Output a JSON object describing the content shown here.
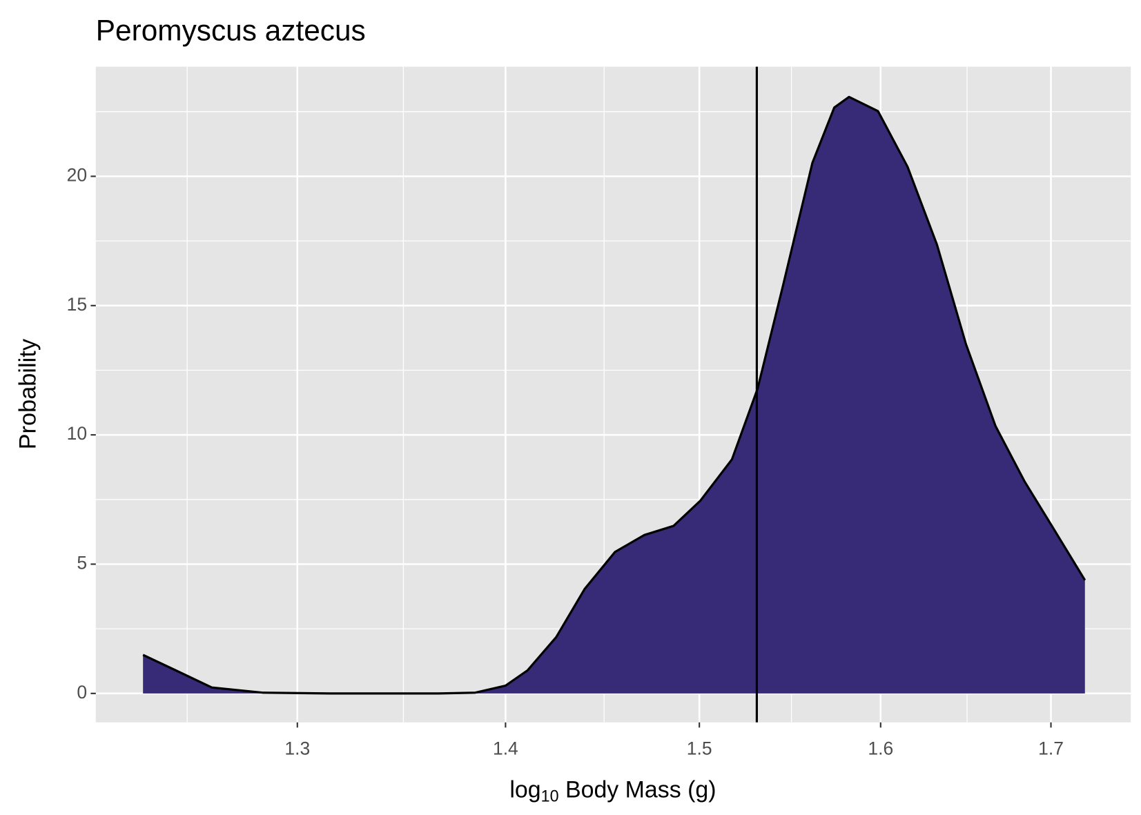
{
  "chart_data": {
    "type": "density",
    "title": "Peromyscus aztecus",
    "xlabel": [
      "log",
      "10",
      " Body Mass (g)"
    ],
    "ylabel": "Probability",
    "x": [
      1.2305,
      1.245,
      1.261,
      1.284,
      1.315,
      1.367,
      1.385,
      1.4,
      1.411,
      1.4255,
      1.44,
      1.4556,
      1.471,
      1.4863,
      1.5005,
      1.5175,
      1.5314,
      1.5454,
      1.5616,
      1.5738,
      1.5821,
      1.5985,
      1.6154,
      1.6324,
      1.6494,
      1.6668,
      1.6842,
      1.702,
      1.7207
    ],
    "values": [
      1.49,
      0.89,
      0.23,
      0.03,
      0,
      0,
      0.03,
      0.3,
      0.89,
      2.18,
      4.04,
      5.47,
      6.13,
      6.48,
      7.45,
      9.05,
      11.78,
      15.79,
      20.52,
      22.66,
      23.07,
      22.52,
      20.37,
      17.36,
      13.5,
      10.34,
      8.19,
      6.33,
      4.38
    ],
    "color": "#372a77",
    "vline": 1.531,
    "xlog": true,
    "xlim": [
      1.21,
      1.749
    ],
    "xticks": [
      1.3,
      1.4,
      1.5,
      1.6,
      1.7
    ],
    "ylim": [
      -1.12,
      24.24
    ],
    "yticks": [
      0,
      5,
      10,
      15,
      20
    ],
    "grid": true
  }
}
